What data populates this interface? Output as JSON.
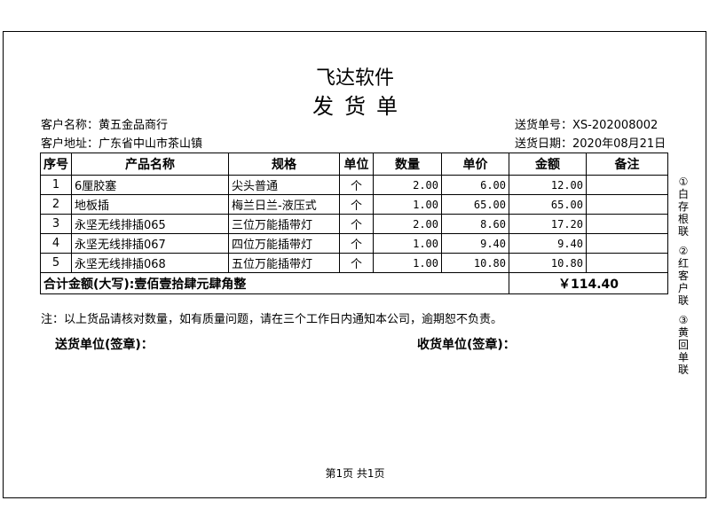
{
  "title": "飞达软件",
  "doc_title": "发货单",
  "customer_name": "客户名称：黄五金品商行",
  "customer_address": "客户地址：广东省中山市茶山镇",
  "order_no": "送货单号：XS-202008002",
  "order_date": "送货日期：2020年08月21日",
  "columns": [
    "序号",
    "产品名称",
    "规格",
    "单位",
    "数量",
    "单价",
    "金额",
    "备注"
  ],
  "rows": [
    [
      "1",
      "6厘胶塞",
      "尖头普通",
      "个",
      "2.00",
      "6.00",
      "12.00",
      ""
    ],
    [
      "2",
      "地板插",
      "梅兰日兰-液压式",
      "个",
      "1.00",
      "65.00",
      "65.00",
      ""
    ],
    [
      "3",
      "永坚无线排插065",
      "三位万能插带灯",
      "个",
      "2.00",
      "8.60",
      "17.20",
      ""
    ],
    [
      "4",
      "永坚无线排插067",
      "四位万能插带灯",
      "个",
      "1.00",
      "9.40",
      "9.40",
      ""
    ],
    [
      "5",
      "永坚无线排插068",
      "五位万能插带灯",
      "个",
      "1.00",
      "10.80",
      "10.80",
      ""
    ]
  ],
  "total_words": "合计金额(大写):壹佰壹拾肆元肆角整",
  "total_amount": "￥114.40",
  "note": "注：以上货品请核对数量，如有质量问题，请在三个工作日内通知本公司，逾期恕不负责。",
  "sender_sign": "送货单位(签章)：",
  "receiver_sign": "收货单位(签章)：",
  "side_labels": [
    "①白存根联",
    "②红客户联",
    "③黄回单联"
  ],
  "footer": "第1页  共1页"
}
